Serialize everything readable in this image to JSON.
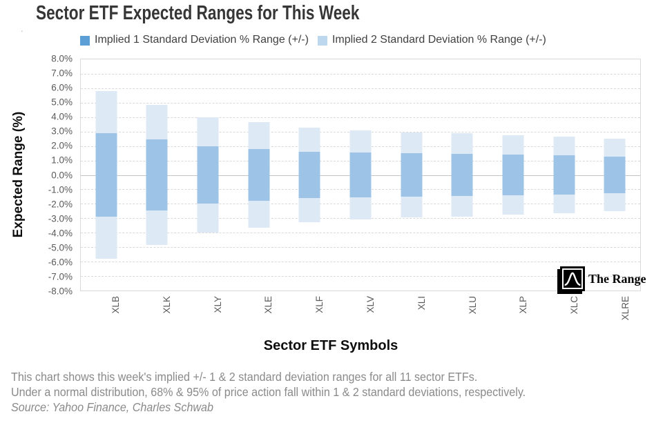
{
  "title": "Sector ETF Expected Ranges for This Week",
  "stray_dot": ".",
  "colors": {
    "series1_marker": "#5B9FD6",
    "series1_bar": "#9DC4E7",
    "series2_marker": "#BDD7EE",
    "series2_bar": "#DEE9F6",
    "gridline": "#D9D9D9",
    "zero_line": "#C3C3C3",
    "tick_label": "#595959",
    "caption_text": "#8A8A8A"
  },
  "legend": {
    "items": [
      {
        "label": "Implied 1 Standard Deviation % Range (+/-)",
        "color": "#5B9FD6"
      },
      {
        "label": "Implied 2 Standard Deviation % Range (+/-)",
        "color": "#BDD7EE"
      }
    ]
  },
  "axes": {
    "y_title": "Expected Range (%)",
    "x_title": "Sector ETF Symbols"
  },
  "logo": {
    "text": "The Range",
    "icon": "bell-curve-icon"
  },
  "caption": {
    "lines": [
      "This chart shows this week's implied +/- 1 & 2 standard deviation ranges for all 11 sector ETFs.",
      "Under a normal distribution, 68% & 95% of price action fall within 1 & 2 standard deviations, respectively."
    ],
    "source": "Source: Yahoo Finance, Charles Schwab"
  },
  "chart_data": {
    "type": "bar",
    "subtype": "floating-range-bars-symmetric",
    "title": "Sector ETF Expected Ranges for This Week",
    "xlabel": "Sector ETF Symbols",
    "ylabel": "Expected Range (%)",
    "ylim": [
      -8,
      8
    ],
    "ytick_step": 1,
    "ytick_format": "percent-one-decimal",
    "grid": "horizontal-dashed",
    "legend_position": "top",
    "categories": [
      "XLB",
      "XLK",
      "XLY",
      "XLE",
      "XLF",
      "XLV",
      "XLI",
      "XLU",
      "XLP",
      "XLC",
      "XLRE"
    ],
    "series": [
      {
        "name": "Implied 1 Standard Deviation % Range (+/-)",
        "plus_minus_pct": [
          2.9,
          2.45,
          2.0,
          1.8,
          1.6,
          1.55,
          1.5,
          1.45,
          1.4,
          1.35,
          1.25
        ]
      },
      {
        "name": "Implied 2 Standard Deviation % Range (+/-)",
        "plus_minus_pct": [
          5.8,
          4.85,
          4.0,
          3.65,
          3.25,
          3.1,
          2.95,
          2.9,
          2.75,
          2.65,
          2.5
        ]
      }
    ]
  }
}
